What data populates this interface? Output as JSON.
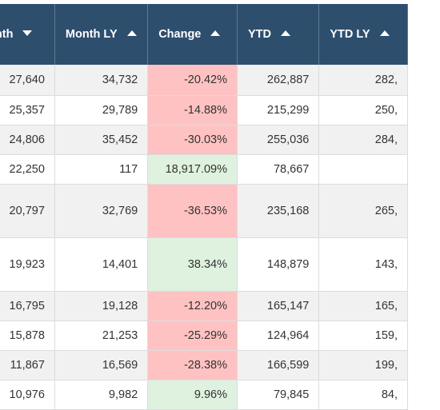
{
  "headers": [
    {
      "label": "Month",
      "sort": "down"
    },
    {
      "label": "Month LY",
      "sort": "up"
    },
    {
      "label": "Change",
      "sort": "up"
    },
    {
      "label": "YTD",
      "sort": "up"
    },
    {
      "label": "YTD LY",
      "sort": "up"
    }
  ],
  "rows": [
    {
      "month": "27,640",
      "month_ly": "34,732",
      "change": "-20.42%",
      "trend": "neg",
      "ytd": "262,887",
      "ytd_ly": "282,"
    },
    {
      "month": "25,357",
      "month_ly": "29,789",
      "change": "-14.88%",
      "trend": "neg",
      "ytd": "215,299",
      "ytd_ly": "250,"
    },
    {
      "month": "24,806",
      "month_ly": "35,452",
      "change": "-30.03%",
      "trend": "neg",
      "ytd": "255,036",
      "ytd_ly": "284,"
    },
    {
      "month": "22,250",
      "month_ly": "117",
      "change": "18,917.09%",
      "trend": "pos",
      "ytd": "78,667",
      "ytd_ly": ""
    },
    {
      "month": "20,797",
      "month_ly": "32,769",
      "change": "-36.53%",
      "trend": "neg",
      "ytd": "235,168",
      "ytd_ly": "265,"
    },
    {
      "month": "19,923",
      "month_ly": "14,401",
      "change": "38.34%",
      "trend": "pos",
      "ytd": "148,879",
      "ytd_ly": "143,"
    },
    {
      "month": "16,795",
      "month_ly": "19,128",
      "change": "-12.20%",
      "trend": "neg",
      "ytd": "165,147",
      "ytd_ly": "165,"
    },
    {
      "month": "15,878",
      "month_ly": "21,253",
      "change": "-25.29%",
      "trend": "neg",
      "ytd": "124,964",
      "ytd_ly": "159,"
    },
    {
      "month": "11,867",
      "month_ly": "16,569",
      "change": "-28.38%",
      "trend": "neg",
      "ytd": "166,599",
      "ytd_ly": "199,"
    },
    {
      "month": "10,976",
      "month_ly": "9,982",
      "change": "9.96%",
      "trend": "pos",
      "ytd": "79,845",
      "ytd_ly": "84,"
    }
  ]
}
